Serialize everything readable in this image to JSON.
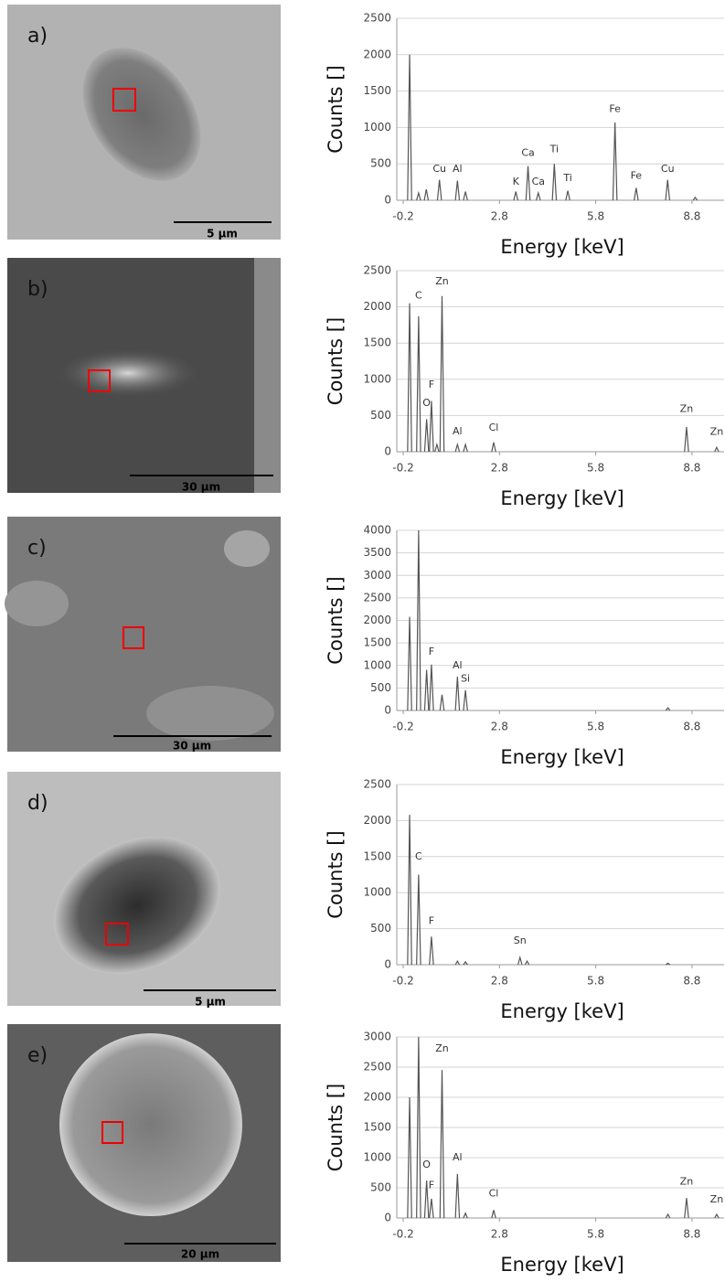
{
  "panels": [
    {
      "label": "a)",
      "scale_bar": "5 µm"
    },
    {
      "label": "b)",
      "scale_bar": "30 µm"
    },
    {
      "label": "c)",
      "scale_bar": "30 µm"
    },
    {
      "label": "d)",
      "scale_bar": "5 µm"
    },
    {
      "label": "e)",
      "scale_bar": "20 µm"
    }
  ],
  "chart_data": [
    {
      "type": "spectrum",
      "x_label": "Energy [keV]",
      "y_label": "Counts []",
      "color": "#555555",
      "grid": true,
      "xlim": [
        -0.4,
        9.8
      ],
      "xticks": [
        -0.2,
        2.8,
        5.8,
        8.8
      ],
      "ylim": [
        0,
        2500
      ],
      "yticks": [
        0,
        500,
        1000,
        1500,
        2000,
        2500
      ],
      "x": [
        0.0,
        0.28,
        0.52,
        0.93,
        1.49,
        1.74,
        3.31,
        3.69,
        4.01,
        4.51,
        4.93,
        6.4,
        7.06,
        8.04,
        8.9
      ],
      "values": [
        2000,
        100,
        150,
        280,
        270,
        120,
        120,
        470,
        100,
        500,
        130,
        1070,
        170,
        280,
        40
      ],
      "annotations": [
        {
          "text": "Cu",
          "x": 0.93,
          "y": 430
        },
        {
          "text": "Al",
          "x": 1.49,
          "y": 430
        },
        {
          "text": "K",
          "x": 3.31,
          "y": 250
        },
        {
          "text": "Ca",
          "x": 3.69,
          "y": 650
        },
        {
          "text": "Ca",
          "x": 4.01,
          "y": 250
        },
        {
          "text": "Ti",
          "x": 4.51,
          "y": 700
        },
        {
          "text": "Ti",
          "x": 4.93,
          "y": 300
        },
        {
          "text": "Fe",
          "x": 6.4,
          "y": 1250
        },
        {
          "text": "Fe",
          "x": 7.06,
          "y": 330
        },
        {
          "text": "Cu",
          "x": 8.04,
          "y": 430
        }
      ]
    },
    {
      "type": "spectrum",
      "x_label": "Energy [keV]",
      "y_label": "Counts []",
      "color": "#555555",
      "grid": true,
      "xlim": [
        -0.4,
        9.8
      ],
      "xticks": [
        -0.2,
        2.8,
        5.8,
        8.8
      ],
      "ylim": [
        0,
        2500
      ],
      "yticks": [
        0,
        500,
        1000,
        1500,
        2000,
        2500
      ],
      "x": [
        0.0,
        0.28,
        0.53,
        0.68,
        0.85,
        1.01,
        1.49,
        1.74,
        2.62,
        8.63,
        9.57
      ],
      "values": [
        2050,
        1870,
        450,
        700,
        100,
        2150,
        100,
        100,
        130,
        340,
        60
      ],
      "annotations": [
        {
          "text": "C",
          "x": 0.28,
          "y": 2150
        },
        {
          "text": "Zn",
          "x": 1.01,
          "y": 2350
        },
        {
          "text": "F",
          "x": 0.68,
          "y": 920
        },
        {
          "text": "O",
          "x": 0.53,
          "y": 670
        },
        {
          "text": "Al",
          "x": 1.49,
          "y": 280
        },
        {
          "text": "Cl",
          "x": 2.62,
          "y": 330
        },
        {
          "text": "Zn",
          "x": 8.63,
          "y": 590
        },
        {
          "text": "Zn",
          "x": 9.57,
          "y": 270
        }
      ]
    },
    {
      "type": "spectrum",
      "x_label": "Energy [keV]",
      "y_label": "Counts []",
      "color": "#555555",
      "grid": true,
      "xlim": [
        -0.4,
        9.8
      ],
      "xticks": [
        -0.2,
        2.8,
        5.8,
        8.8
      ],
      "ylim": [
        0,
        4000
      ],
      "yticks": [
        0,
        500,
        1000,
        1500,
        2000,
        2500,
        3000,
        3500,
        4000
      ],
      "x": [
        0.0,
        0.28,
        0.53,
        0.68,
        1.01,
        1.49,
        1.74,
        8.05
      ],
      "values": [
        2080,
        4000,
        900,
        1020,
        350,
        750,
        450,
        60
      ],
      "annotations": [
        {
          "text": "F",
          "x": 0.68,
          "y": 1300
        },
        {
          "text": "Al",
          "x": 1.49,
          "y": 1000
        },
        {
          "text": "Si",
          "x": 1.74,
          "y": 700
        }
      ]
    },
    {
      "type": "spectrum",
      "x_label": "Energy [keV]",
      "y_label": "Counts []",
      "color": "#555555",
      "grid": true,
      "xlim": [
        -0.4,
        9.8
      ],
      "xticks": [
        -0.2,
        2.8,
        5.8,
        8.8
      ],
      "ylim": [
        0,
        2500
      ],
      "yticks": [
        0,
        500,
        1000,
        1500,
        2000,
        2500
      ],
      "x": [
        0.0,
        0.28,
        0.68,
        1.49,
        1.74,
        3.44,
        3.66,
        8.05
      ],
      "values": [
        2080,
        1250,
        390,
        50,
        40,
        100,
        50,
        20
      ],
      "annotations": [
        {
          "text": "C",
          "x": 0.28,
          "y": 1500
        },
        {
          "text": "F",
          "x": 0.68,
          "y": 600
        },
        {
          "text": "Sn",
          "x": 3.44,
          "y": 330
        }
      ]
    },
    {
      "type": "spectrum",
      "x_label": "Energy [keV]",
      "y_label": "Counts []",
      "color": "#555555",
      "grid": true,
      "xlim": [
        -0.4,
        9.8
      ],
      "xticks": [
        -0.2,
        2.8,
        5.8,
        8.8
      ],
      "ylim": [
        0,
        3000
      ],
      "yticks": [
        0,
        500,
        1000,
        1500,
        2000,
        2500,
        3000
      ],
      "x": [
        0.0,
        0.28,
        0.53,
        0.68,
        1.01,
        1.49,
        1.74,
        2.62,
        8.05,
        8.63,
        9.57
      ],
      "values": [
        2000,
        3000,
        620,
        320,
        2450,
        730,
        80,
        130,
        60,
        330,
        60
      ],
      "annotations": [
        {
          "text": "Zn",
          "x": 1.01,
          "y": 2800
        },
        {
          "text": "O",
          "x": 0.53,
          "y": 880
        },
        {
          "text": "F",
          "x": 0.68,
          "y": 540
        },
        {
          "text": "Al",
          "x": 1.49,
          "y": 1000
        },
        {
          "text": "Cl",
          "x": 2.62,
          "y": 400
        },
        {
          "text": "Zn",
          "x": 8.63,
          "y": 600
        },
        {
          "text": "Zn",
          "x": 9.57,
          "y": 300
        }
      ]
    }
  ]
}
